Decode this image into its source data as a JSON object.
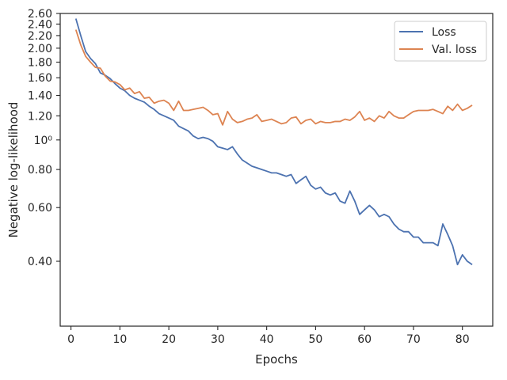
{
  "chart_data": {
    "type": "line",
    "xlabel": "Epochs",
    "ylabel": "Negative log-likelihood",
    "xlim": [
      -2.2,
      86.2
    ],
    "ylim": [
      0.245,
      2.6
    ],
    "yscale": "log",
    "legend_position": "top-right",
    "grid": false,
    "xticks": [
      0,
      10,
      20,
      30,
      40,
      50,
      60,
      70,
      80
    ],
    "xtick_labels": [
      "0",
      "10",
      "20",
      "30",
      "40",
      "50",
      "60",
      "70",
      "80"
    ],
    "yticks": [
      0.4,
      0.6,
      0.8,
      1.0,
      1.2,
      1.4,
      1.6,
      1.8,
      2.0,
      2.2,
      2.4,
      2.6
    ],
    "ytick_labels": [
      "0.40",
      "0.60",
      "0.80",
      "10⁰",
      "1.20",
      "1.40",
      "1.60",
      "1.80",
      "2.00",
      "2.20",
      "2.40",
      "2.60"
    ],
    "x": [
      1,
      2,
      3,
      4,
      5,
      6,
      7,
      8,
      9,
      10,
      11,
      12,
      13,
      14,
      15,
      16,
      17,
      18,
      19,
      20,
      21,
      22,
      23,
      24,
      25,
      26,
      27,
      28,
      29,
      30,
      31,
      32,
      33,
      34,
      35,
      36,
      37,
      38,
      39,
      40,
      41,
      42,
      43,
      44,
      45,
      46,
      47,
      48,
      49,
      50,
      51,
      52,
      53,
      54,
      55,
      56,
      57,
      58,
      59,
      60,
      61,
      62,
      63,
      64,
      65,
      66,
      67,
      68,
      69,
      70,
      71,
      72,
      73,
      74,
      75,
      76,
      77,
      78,
      79,
      80,
      81,
      82
    ],
    "series": [
      {
        "name": "Loss",
        "color": "#4c72b0",
        "values": [
          2.5,
          2.2,
          1.95,
          1.85,
          1.78,
          1.66,
          1.63,
          1.59,
          1.53,
          1.48,
          1.45,
          1.4,
          1.37,
          1.35,
          1.33,
          1.29,
          1.26,
          1.22,
          1.2,
          1.18,
          1.16,
          1.11,
          1.09,
          1.07,
          1.03,
          1.01,
          1.02,
          1.01,
          0.99,
          0.95,
          0.94,
          0.93,
          0.95,
          0.9,
          0.86,
          0.84,
          0.82,
          0.81,
          0.8,
          0.79,
          0.78,
          0.78,
          0.77,
          0.76,
          0.77,
          0.72,
          0.74,
          0.76,
          0.71,
          0.69,
          0.7,
          0.67,
          0.66,
          0.67,
          0.63,
          0.62,
          0.68,
          0.63,
          0.57,
          0.59,
          0.61,
          0.59,
          0.56,
          0.57,
          0.56,
          0.53,
          0.51,
          0.5,
          0.5,
          0.48,
          0.48,
          0.46,
          0.46,
          0.46,
          0.45,
          0.53,
          0.49,
          0.45,
          0.39,
          0.42,
          0.4,
          0.39
        ]
      },
      {
        "name": "Val. loss",
        "color": "#dd8452",
        "values": [
          2.3,
          2.05,
          1.88,
          1.8,
          1.73,
          1.72,
          1.62,
          1.56,
          1.55,
          1.52,
          1.46,
          1.48,
          1.42,
          1.44,
          1.37,
          1.38,
          1.32,
          1.34,
          1.35,
          1.32,
          1.25,
          1.34,
          1.25,
          1.25,
          1.26,
          1.27,
          1.28,
          1.25,
          1.21,
          1.22,
          1.12,
          1.24,
          1.17,
          1.14,
          1.15,
          1.17,
          1.18,
          1.21,
          1.15,
          1.16,
          1.17,
          1.15,
          1.13,
          1.14,
          1.18,
          1.19,
          1.13,
          1.16,
          1.17,
          1.13,
          1.15,
          1.14,
          1.14,
          1.15,
          1.15,
          1.17,
          1.16,
          1.19,
          1.24,
          1.16,
          1.18,
          1.15,
          1.2,
          1.18,
          1.24,
          1.2,
          1.18,
          1.18,
          1.21,
          1.24,
          1.25,
          1.25,
          1.25,
          1.26,
          1.24,
          1.22,
          1.29,
          1.25,
          1.31,
          1.25,
          1.27,
          1.3
        ]
      }
    ]
  }
}
